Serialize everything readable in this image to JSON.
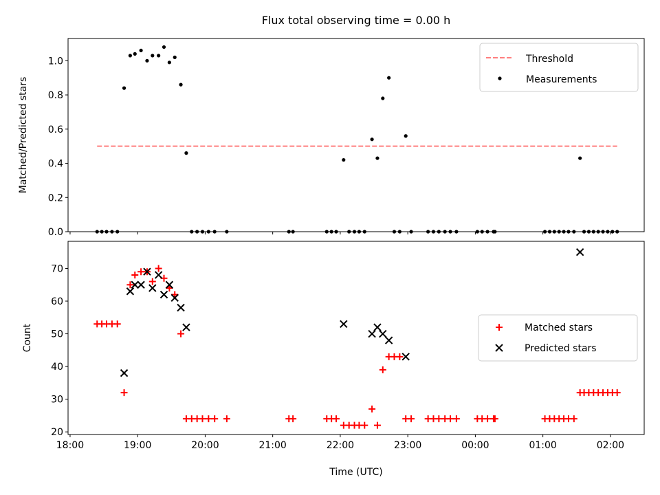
{
  "chart_data": {
    "title": "Flux total observing time = 0.00 h",
    "colors": {
      "threshold": "#ff7f7f",
      "measurement": "#000000",
      "matched": "#ff0000",
      "predicted": "#000000"
    },
    "x_tick_labels": [
      "18:00",
      "19:00",
      "20:00",
      "21:00",
      "22:00",
      "23:00",
      "00:00",
      "01:00",
      "02:00"
    ],
    "x_ticks_hours": [
      18,
      19,
      20,
      21,
      22,
      23,
      24,
      25,
      26
    ],
    "xlim_hours": [
      17.97,
      26.5
    ],
    "xlabel": "Time (UTC)",
    "panels": [
      {
        "type": "scatter",
        "ylabel": "Matched/Predicted stars",
        "ylim": [
          0,
          1.13
        ],
        "y_ticks": [
          0.0,
          0.2,
          0.4,
          0.6,
          0.8,
          1.0
        ],
        "y_tick_labels": [
          "0.0",
          "0.2",
          "0.4",
          "0.6",
          "0.8",
          "1.0"
        ],
        "legend_position": "upper right",
        "threshold": {
          "name": "Threshold",
          "value": 0.5,
          "x_range_hours": [
            18.4,
            26.1
          ]
        },
        "series": [
          {
            "name": "Measurements",
            "marker": "dot",
            "x_hours": [
              18.4,
              18.47,
              18.54,
              18.62,
              18.7,
              18.8,
              18.89,
              18.96,
              19.05,
              19.14,
              19.22,
              19.31,
              19.39,
              19.47,
              19.55,
              19.64,
              19.72,
              19.8,
              19.88,
              19.96,
              20.05,
              20.14,
              20.32,
              21.24,
              21.3,
              21.8,
              21.87,
              21.94,
              22.05,
              22.13,
              22.21,
              22.28,
              22.36,
              22.47,
              22.55,
              22.63,
              22.72,
              22.8,
              22.88,
              22.97,
              23.05,
              23.3,
              23.38,
              23.46,
              23.55,
              23.63,
              23.72,
              24.03,
              24.1,
              24.18,
              24.27,
              24.29,
              25.03,
              25.1,
              25.17,
              25.24,
              25.31,
              25.38,
              25.46,
              25.55,
              25.61,
              25.68,
              25.75,
              25.82,
              25.89,
              25.96,
              26.03,
              26.1
            ],
            "y": [
              0,
              0,
              0,
              0,
              0,
              0.84,
              1.03,
              1.04,
              1.06,
              1.0,
              1.03,
              1.03,
              1.08,
              0.99,
              1.02,
              0.86,
              0.46,
              0,
              0,
              0,
              0,
              0,
              0,
              0,
              0,
              0,
              0,
              0,
              0.42,
              0,
              0,
              0,
              0,
              0.54,
              0.43,
              0.78,
              0.9,
              0,
              0,
              0.56,
              0,
              0,
              0,
              0,
              0,
              0,
              0,
              0,
              0,
              0,
              0,
              0,
              0,
              0,
              0,
              0,
              0,
              0,
              0,
              0.43,
              0,
              0,
              0,
              0,
              0,
              0,
              0,
              0
            ]
          }
        ]
      },
      {
        "type": "scatter",
        "ylabel": "Count",
        "ylim": [
          19.2,
          78.3
        ],
        "y_ticks": [
          20,
          30,
          40,
          50,
          60,
          70
        ],
        "y_tick_labels": [
          "20",
          "30",
          "40",
          "50",
          "60",
          "70"
        ],
        "legend_position": "center right",
        "series": [
          {
            "name": "Matched stars",
            "marker": "plus",
            "x_hours": [
              18.4,
              18.47,
              18.54,
              18.62,
              18.7,
              18.8,
              18.89,
              18.96,
              19.05,
              19.14,
              19.22,
              19.31,
              19.39,
              19.47,
              19.55,
              19.64,
              19.72,
              19.8,
              19.88,
              19.96,
              20.05,
              20.14,
              20.32,
              21.24,
              21.3,
              21.8,
              21.87,
              21.94,
              22.05,
              22.13,
              22.21,
              22.28,
              22.36,
              22.47,
              22.55,
              22.63,
              22.72,
              22.8,
              22.88,
              22.97,
              23.05,
              23.3,
              23.38,
              23.46,
              23.55,
              23.63,
              23.72,
              24.03,
              24.1,
              24.18,
              24.27,
              24.29,
              25.03,
              25.1,
              25.17,
              25.24,
              25.31,
              25.38,
              25.46,
              25.55,
              25.61,
              25.68,
              25.75,
              25.82,
              25.89,
              25.96,
              26.03,
              26.1
            ],
            "y": [
              53,
              53,
              53,
              53,
              53,
              32,
              65,
              68,
              69,
              69,
              66,
              70,
              67,
              64,
              62,
              50,
              24,
              24,
              24,
              24,
              24,
              24,
              24,
              24,
              24,
              24,
              24,
              24,
              22,
              22,
              22,
              22,
              22,
              27,
              22,
              39,
              43,
              43,
              43,
              24,
              24,
              24,
              24,
              24,
              24,
              24,
              24,
              24,
              24,
              24,
              24,
              24,
              24,
              24,
              24,
              24,
              24,
              24,
              24,
              32,
              32,
              32,
              32,
              32,
              32,
              32,
              32,
              32
            ]
          },
          {
            "name": "Predicted stars",
            "marker": "x",
            "x_hours": [
              18.8,
              18.89,
              18.96,
              19.05,
              19.14,
              19.22,
              19.31,
              19.39,
              19.47,
              19.55,
              19.64,
              19.72,
              22.05,
              22.47,
              22.55,
              22.63,
              22.72,
              22.97,
              25.55
            ],
            "y": [
              38,
              63,
              65,
              65,
              69,
              64,
              68,
              62,
              65,
              61,
              58,
              52,
              53,
              50,
              52,
              50,
              48,
              43,
              75
            ]
          }
        ]
      }
    ]
  }
}
